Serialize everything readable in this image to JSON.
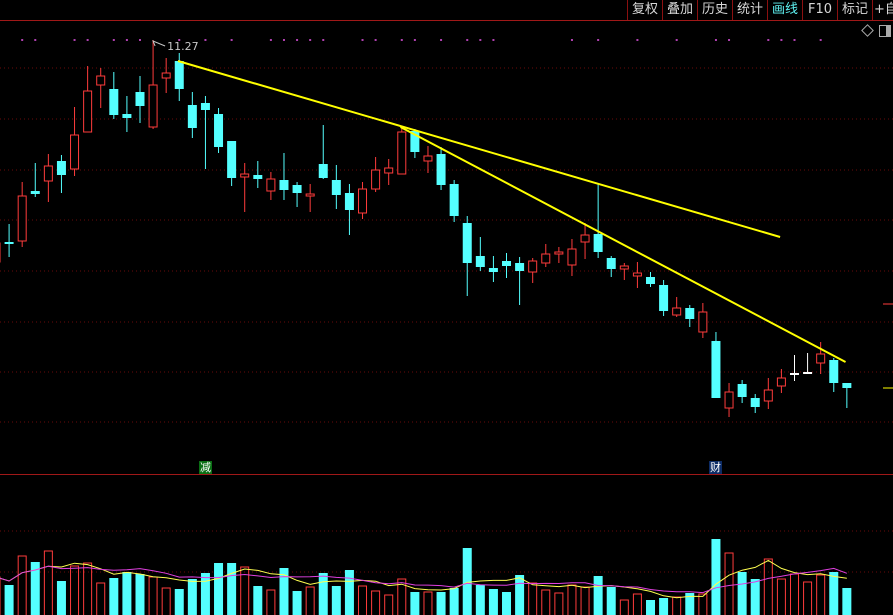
{
  "toolbar": {
    "buttons": [
      {
        "label": "复权"
      },
      {
        "label": "叠加"
      },
      {
        "label": "历史"
      },
      {
        "label": "统计"
      },
      {
        "label": "画线",
        "active": true
      },
      {
        "label": "F10"
      },
      {
        "label": "标记"
      },
      {
        "label": "+自"
      }
    ],
    "icons": [
      "diamond-icon",
      "panel-toggle-icon"
    ]
  },
  "markers": {
    "reduce": {
      "label": "减",
      "candle_index": 16,
      "color": "#0a6e14"
    },
    "finance": {
      "label": "财",
      "candle_index": 55,
      "color": "#0d2c66"
    }
  },
  "chart_data": {
    "type": "candlestick",
    "title": "",
    "max_label": "11.27",
    "colors": {
      "up": "#ff3c3c",
      "down": "#54ffff",
      "flat": "#ffffff",
      "trendline": "#ffff00",
      "vol_ma5": "#ffff50",
      "vol_ma10": "#e040e0",
      "grid": "#6a0a0a"
    },
    "candles": [
      {
        "o": 9.05,
        "h": 9.27,
        "l": 9.02,
        "c": 9.24
      },
      {
        "o": 9.25,
        "h": 9.43,
        "l": 9.1,
        "c": 9.23
      },
      {
        "o": 9.26,
        "h": 9.85,
        "l": 9.2,
        "c": 9.71
      },
      {
        "o": 9.76,
        "h": 10.04,
        "l": 9.7,
        "c": 9.73
      },
      {
        "o": 9.86,
        "h": 10.13,
        "l": 9.65,
        "c": 10.01
      },
      {
        "o": 10.06,
        "h": 10.12,
        "l": 9.74,
        "c": 9.92
      },
      {
        "o": 9.98,
        "h": 10.6,
        "l": 9.91,
        "c": 10.32
      },
      {
        "o": 10.35,
        "h": 11.01,
        "l": 10.35,
        "c": 10.76
      },
      {
        "o": 10.82,
        "h": 10.99,
        "l": 10.59,
        "c": 10.91
      },
      {
        "o": 10.78,
        "h": 10.95,
        "l": 10.48,
        "c": 10.52
      },
      {
        "o": 10.53,
        "h": 10.71,
        "l": 10.35,
        "c": 10.49
      },
      {
        "o": 10.75,
        "h": 10.91,
        "l": 10.44,
        "c": 10.61
      },
      {
        "o": 10.4,
        "h": 11.27,
        "l": 10.38,
        "c": 10.82
      },
      {
        "o": 10.89,
        "h": 11.09,
        "l": 10.74,
        "c": 10.94
      },
      {
        "o": 11.06,
        "h": 11.14,
        "l": 10.66,
        "c": 10.78
      },
      {
        "o": 10.62,
        "h": 10.75,
        "l": 10.29,
        "c": 10.39
      },
      {
        "o": 10.64,
        "h": 10.71,
        "l": 9.98,
        "c": 10.57
      },
      {
        "o": 10.53,
        "h": 10.59,
        "l": 10.14,
        "c": 10.2
      },
      {
        "o": 10.26,
        "h": 10.26,
        "l": 9.81,
        "c": 9.89
      },
      {
        "o": 9.9,
        "h": 10.04,
        "l": 9.55,
        "c": 9.93
      },
      {
        "o": 9.92,
        "h": 10.06,
        "l": 9.79,
        "c": 9.88
      },
      {
        "o": 9.76,
        "h": 9.95,
        "l": 9.67,
        "c": 9.88
      },
      {
        "o": 9.87,
        "h": 10.14,
        "l": 9.67,
        "c": 9.77
      },
      {
        "o": 9.82,
        "h": 9.85,
        "l": 9.6,
        "c": 9.74
      },
      {
        "o": 9.71,
        "h": 9.83,
        "l": 9.55,
        "c": 9.73
      },
      {
        "o": 10.03,
        "h": 10.42,
        "l": 9.88,
        "c": 9.89
      },
      {
        "o": 9.87,
        "h": 10.02,
        "l": 9.58,
        "c": 9.72
      },
      {
        "o": 9.74,
        "h": 9.83,
        "l": 9.32,
        "c": 9.57
      },
      {
        "o": 9.54,
        "h": 9.85,
        "l": 9.48,
        "c": 9.78
      },
      {
        "o": 9.78,
        "h": 10.1,
        "l": 9.75,
        "c": 9.97
      },
      {
        "o": 9.94,
        "h": 10.08,
        "l": 9.82,
        "c": 9.99
      },
      {
        "o": 9.93,
        "h": 10.4,
        "l": 9.93,
        "c": 10.35
      },
      {
        "o": 10.36,
        "h": 10.38,
        "l": 10.09,
        "c": 10.15
      },
      {
        "o": 10.06,
        "h": 10.21,
        "l": 9.94,
        "c": 10.11
      },
      {
        "o": 10.13,
        "h": 10.2,
        "l": 9.77,
        "c": 9.82
      },
      {
        "o": 9.83,
        "h": 9.87,
        "l": 9.45,
        "c": 9.51
      },
      {
        "o": 9.44,
        "h": 9.51,
        "l": 8.71,
        "c": 9.04
      },
      {
        "o": 9.11,
        "h": 9.3,
        "l": 8.96,
        "c": 9.0
      },
      {
        "o": 8.99,
        "h": 9.11,
        "l": 8.85,
        "c": 8.95
      },
      {
        "o": 9.06,
        "h": 9.14,
        "l": 8.89,
        "c": 9.01
      },
      {
        "o": 9.04,
        "h": 9.1,
        "l": 8.62,
        "c": 8.96
      },
      {
        "o": 8.95,
        "h": 9.09,
        "l": 8.84,
        "c": 9.06
      },
      {
        "o": 9.04,
        "h": 9.23,
        "l": 9.0,
        "c": 9.13
      },
      {
        "o": 9.13,
        "h": 9.2,
        "l": 9.04,
        "c": 9.15
      },
      {
        "o": 9.02,
        "h": 9.28,
        "l": 8.91,
        "c": 9.18
      },
      {
        "o": 9.25,
        "h": 9.44,
        "l": 9.08,
        "c": 9.32
      },
      {
        "o": 9.33,
        "h": 9.83,
        "l": 9.09,
        "c": 9.15
      },
      {
        "o": 9.09,
        "h": 9.11,
        "l": 8.9,
        "c": 8.98
      },
      {
        "o": 8.98,
        "h": 9.04,
        "l": 8.87,
        "c": 9.01
      },
      {
        "o": 8.91,
        "h": 9.05,
        "l": 8.79,
        "c": 8.94
      },
      {
        "o": 8.9,
        "h": 8.95,
        "l": 8.8,
        "c": 8.83
      },
      {
        "o": 8.82,
        "h": 8.87,
        "l": 8.51,
        "c": 8.56
      },
      {
        "o": 8.52,
        "h": 8.7,
        "l": 8.5,
        "c": 8.59
      },
      {
        "o": 8.59,
        "h": 8.62,
        "l": 8.4,
        "c": 8.48
      },
      {
        "o": 8.35,
        "h": 8.64,
        "l": 8.29,
        "c": 8.55
      },
      {
        "o": 8.26,
        "h": 8.35,
        "l": 7.69,
        "c": 7.69
      },
      {
        "o": 7.59,
        "h": 7.84,
        "l": 7.5,
        "c": 7.75
      },
      {
        "o": 7.83,
        "h": 7.87,
        "l": 7.64,
        "c": 7.7
      },
      {
        "o": 7.69,
        "h": 7.73,
        "l": 7.54,
        "c": 7.6
      },
      {
        "o": 7.66,
        "h": 7.89,
        "l": 7.58,
        "c": 7.77
      },
      {
        "o": 7.81,
        "h": 7.98,
        "l": 7.74,
        "c": 7.89
      },
      {
        "o": 7.94,
        "h": 8.12,
        "l": 7.86,
        "c": 7.94
      },
      {
        "o": 7.95,
        "h": 8.14,
        "l": 7.93,
        "c": 7.95
      },
      {
        "o": 8.04,
        "h": 8.25,
        "l": 7.93,
        "c": 8.13
      },
      {
        "o": 8.07,
        "h": 8.09,
        "l": 7.75,
        "c": 7.84
      },
      {
        "o": 7.84,
        "h": 7.84,
        "l": 7.59,
        "c": 7.79
      }
    ],
    "volume": [
      38,
      30,
      59,
      53,
      64,
      34,
      49,
      52,
      32,
      37,
      43,
      41,
      38,
      27,
      26,
      36,
      42,
      52,
      52,
      48,
      29,
      25,
      47,
      24,
      28,
      42,
      29,
      45,
      29,
      24,
      20,
      36,
      23,
      23,
      23,
      27,
      67,
      30,
      26,
      23,
      40,
      32,
      25,
      22,
      30,
      28,
      39,
      28,
      15,
      21,
      15,
      17,
      18,
      22,
      21,
      76,
      62,
      43,
      36,
      56,
      36,
      41,
      33,
      40,
      43,
      27
    ],
    "volume_ma": [
      5,
      10
    ],
    "event_dots": [
      2,
      3,
      6,
      7,
      9,
      10,
      11,
      14,
      16,
      18,
      21,
      22,
      23,
      24,
      25,
      28,
      29,
      31,
      32,
      34,
      36,
      37,
      38,
      44,
      46,
      49,
      52,
      55,
      56,
      59,
      60,
      61,
      63
    ],
    "trendlines": [
      {
        "from": {
          "index": 13.9,
          "price": 11.06
        },
        "to": {
          "index": 59.9,
          "price": 9.3
        }
      },
      {
        "from": {
          "index": 30.9,
          "price": 10.4
        },
        "to": {
          "index": 64.9,
          "price": 8.05
        }
      }
    ],
    "right_ticks": [
      {
        "price": 8.63,
        "color": "#ff3c3c"
      },
      {
        "price": 7.79,
        "color": "#ffff00"
      }
    ],
    "grid": true,
    "legend": "none"
  }
}
